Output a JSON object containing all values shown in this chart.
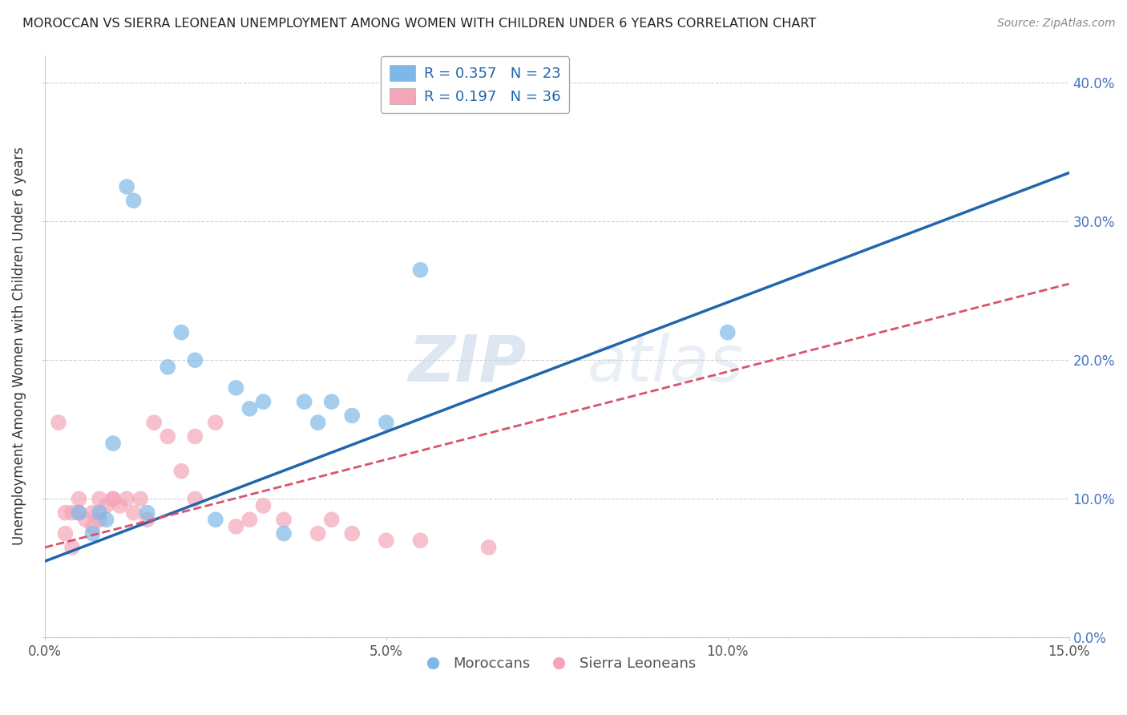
{
  "title": "MOROCCAN VS SIERRA LEONEAN UNEMPLOYMENT AMONG WOMEN WITH CHILDREN UNDER 6 YEARS CORRELATION CHART",
  "source": "Source: ZipAtlas.com",
  "xlabel": "",
  "ylabel": "Unemployment Among Women with Children Under 6 years",
  "xlim": [
    0.0,
    0.15
  ],
  "ylim": [
    0.0,
    0.42
  ],
  "xticks": [
    0.0,
    0.05,
    0.1,
    0.15
  ],
  "xtick_labels": [
    "0.0%",
    "5.0%",
    "10.0%",
    "15.0%"
  ],
  "yticks": [
    0.0,
    0.1,
    0.2,
    0.3,
    0.4
  ],
  "ytick_labels": [
    "0.0%",
    "10.0%",
    "20.0%",
    "30.0%",
    "40.0%"
  ],
  "blue_color": "#7eb8e8",
  "blue_line_color": "#2166ac",
  "pink_color": "#f4a6b8",
  "pink_line_color": "#d6546b",
  "legend_blue_label": "R = 0.357   N = 23",
  "legend_pink_label": "R = 0.197   N = 36",
  "moroccans_label": "Moroccans",
  "sierra_leoneans_label": "Sierra Leoneans",
  "blue_R": 0.357,
  "blue_N": 23,
  "pink_R": 0.197,
  "pink_N": 36,
  "blue_x": [
    0.005,
    0.007,
    0.008,
    0.009,
    0.01,
    0.012,
    0.013,
    0.015,
    0.018,
    0.02,
    0.022,
    0.025,
    0.028,
    0.03,
    0.032,
    0.035,
    0.038,
    0.04,
    0.042,
    0.045,
    0.05,
    0.055,
    0.1
  ],
  "blue_y": [
    0.09,
    0.075,
    0.09,
    0.085,
    0.14,
    0.325,
    0.315,
    0.09,
    0.195,
    0.22,
    0.2,
    0.085,
    0.18,
    0.165,
    0.17,
    0.075,
    0.17,
    0.155,
    0.17,
    0.16,
    0.155,
    0.265,
    0.22
  ],
  "pink_x": [
    0.002,
    0.003,
    0.003,
    0.004,
    0.004,
    0.005,
    0.005,
    0.006,
    0.007,
    0.007,
    0.008,
    0.008,
    0.009,
    0.01,
    0.01,
    0.011,
    0.012,
    0.013,
    0.014,
    0.015,
    0.016,
    0.018,
    0.02,
    0.022,
    0.022,
    0.025,
    0.028,
    0.03,
    0.032,
    0.035,
    0.04,
    0.042,
    0.045,
    0.05,
    0.055,
    0.065
  ],
  "pink_y": [
    0.155,
    0.09,
    0.075,
    0.09,
    0.065,
    0.1,
    0.09,
    0.085,
    0.09,
    0.08,
    0.1,
    0.085,
    0.095,
    0.1,
    0.1,
    0.095,
    0.1,
    0.09,
    0.1,
    0.085,
    0.155,
    0.145,
    0.12,
    0.1,
    0.145,
    0.155,
    0.08,
    0.085,
    0.095,
    0.085,
    0.075,
    0.085,
    0.075,
    0.07,
    0.07,
    0.065
  ],
  "blue_trend_x0": 0.0,
  "blue_trend_y0": 0.055,
  "blue_trend_x1": 0.15,
  "blue_trend_y1": 0.335,
  "pink_trend_x0": 0.0,
  "pink_trend_y0": 0.065,
  "pink_trend_x1": 0.15,
  "pink_trend_y1": 0.255,
  "watermark_zip": "ZIP",
  "watermark_atlas": "atlas",
  "background_color": "#ffffff",
  "grid_color": "#cccccc"
}
